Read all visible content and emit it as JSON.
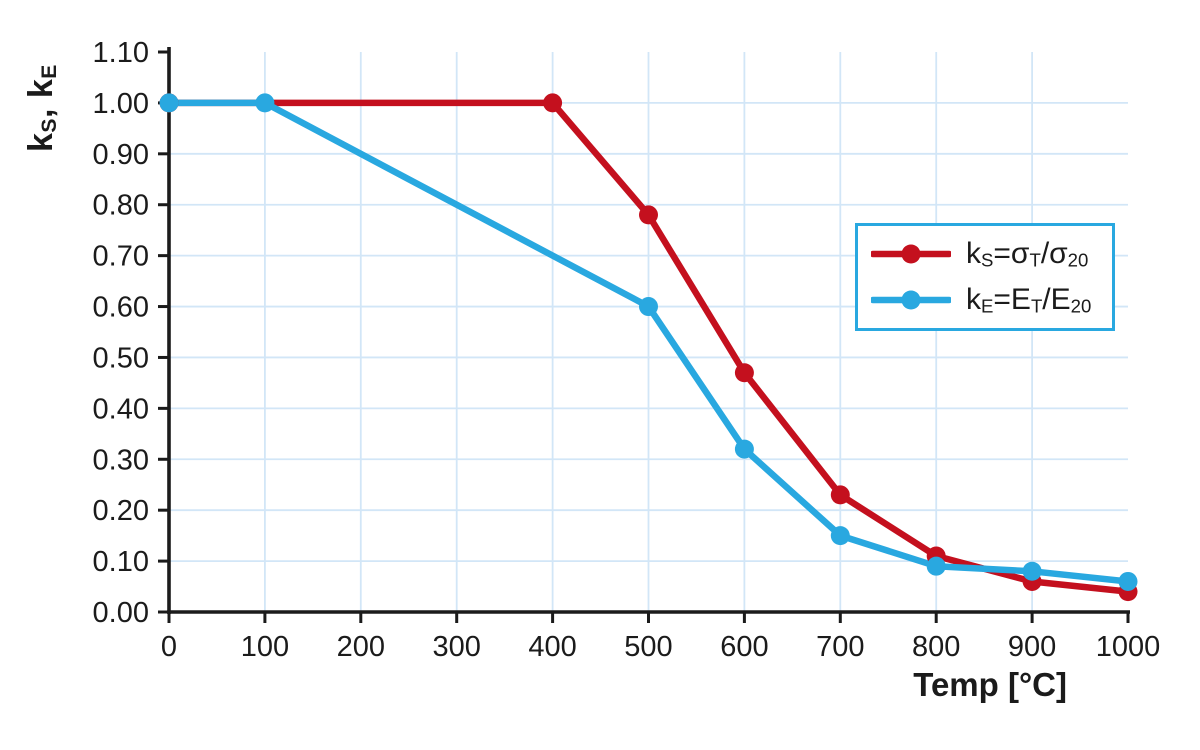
{
  "chart_data": {
    "type": "line",
    "title": "",
    "xlabel": "Temp [°C]",
    "ylabel_text": "kS, kE",
    "ylabel_parts": [
      [
        "k",
        false
      ],
      [
        "S",
        true
      ],
      [
        ", k",
        false
      ],
      [
        "E",
        true
      ]
    ],
    "xlim": [
      0,
      1000
    ],
    "ylim": [
      0,
      1.1
    ],
    "x_ticks": [
      0,
      100,
      200,
      300,
      400,
      500,
      600,
      700,
      800,
      900,
      1000
    ],
    "y_tick_labels": [
      "0.00",
      "0.10",
      "0.20",
      "0.30",
      "0.40",
      "0.50",
      "0.60",
      "0.70",
      "0.80",
      "0.90",
      "1.00",
      "1.10"
    ],
    "grid": true,
    "legend_position": "upper-right-inset",
    "series": [
      {
        "name": "ks",
        "label_text": "kS=σT/σ20",
        "label_parts": [
          [
            "k",
            false
          ],
          [
            "S",
            true
          ],
          [
            "=σ",
            false
          ],
          [
            "T",
            true
          ],
          [
            "/σ",
            false
          ],
          [
            "20",
            true
          ]
        ],
        "color": "#c4101e",
        "x": [
          0,
          400,
          500,
          600,
          700,
          800,
          900,
          1000
        ],
        "y": [
          1.0,
          1.0,
          0.78,
          0.47,
          0.23,
          0.11,
          0.06,
          0.04
        ]
      },
      {
        "name": "ke",
        "label_text": "kE=ET/E20",
        "label_parts": [
          [
            "k",
            false
          ],
          [
            "E",
            true
          ],
          [
            "=E",
            false
          ],
          [
            "T",
            true
          ],
          [
            "/E",
            false
          ],
          [
            "20",
            true
          ]
        ],
        "color": "#29a8e0",
        "x": [
          0,
          100,
          500,
          600,
          700,
          800,
          900,
          1000
        ],
        "y": [
          1.0,
          1.0,
          0.6,
          0.32,
          0.15,
          0.09,
          0.08,
          0.06
        ]
      }
    ],
    "colors": {
      "background": "#ffffff",
      "grid": "#d2e6f7",
      "axis": "#1b1b1b",
      "legend_border": "#29a8e0",
      "tick_text": "#1b1b1b"
    }
  }
}
